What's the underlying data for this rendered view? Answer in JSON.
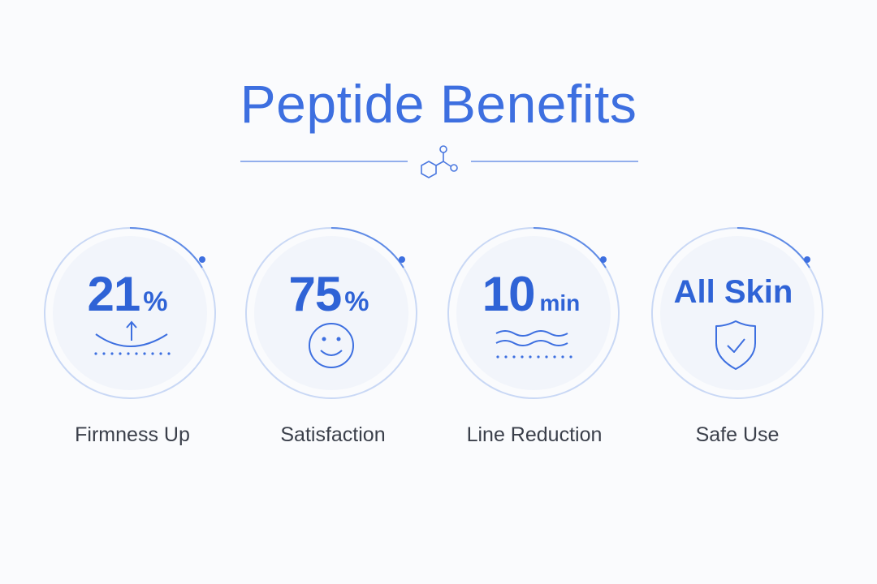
{
  "title": "Peptide Benefits",
  "colors": {
    "accent": "#3d6fe0",
    "ring": "#8fb0ee",
    "label": "#3a3f4a"
  },
  "benefits": [
    {
      "value": "21",
      "unit": "%",
      "label": "Firmness Up",
      "icon": "arc-up-arrow-icon"
    },
    {
      "value": "75",
      "unit": "%",
      "label": "Satisfaction",
      "icon": "smiley-icon"
    },
    {
      "value": "10",
      "unit": "min",
      "label": "Line Reduction",
      "icon": "wavy-lines-icon"
    },
    {
      "value": "All Skin",
      "unit": "",
      "label": "Safe Use",
      "icon": "shield-check-icon"
    }
  ]
}
